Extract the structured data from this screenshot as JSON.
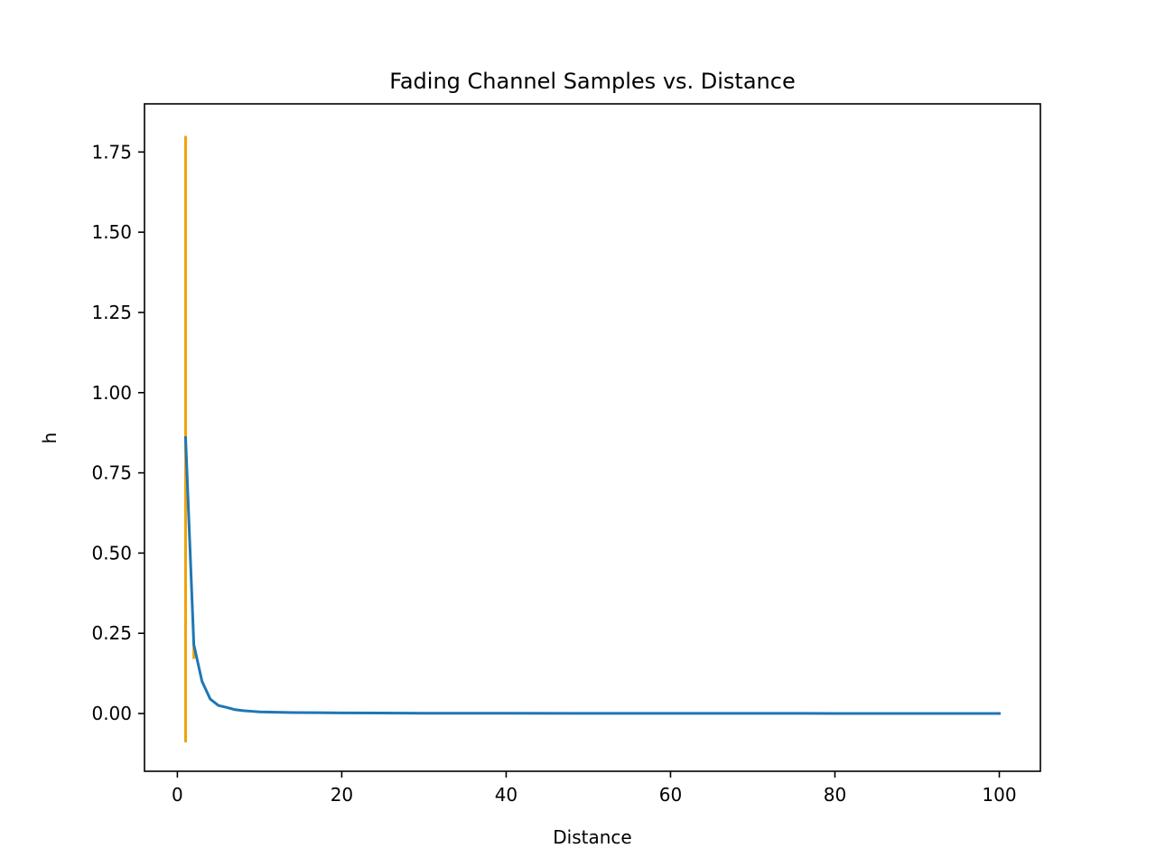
{
  "chart_data": {
    "type": "line",
    "title": "Fading Channel Samples vs. Distance",
    "xlabel": "Distance",
    "ylabel": "h",
    "xlim": [
      -4,
      105
    ],
    "ylim": [
      -0.18,
      1.9
    ],
    "x_ticks": [
      0,
      20,
      40,
      60,
      80,
      100
    ],
    "x_tick_labels": [
      "0",
      "20",
      "40",
      "60",
      "80",
      "100"
    ],
    "y_ticks": [
      0.0,
      0.25,
      0.5,
      0.75,
      1.0,
      1.25,
      1.5,
      1.75
    ],
    "y_tick_labels": [
      "0.00",
      "0.25",
      "0.50",
      "0.75",
      "1.00",
      "1.25",
      "1.50",
      "1.75"
    ],
    "grid": false,
    "legend": false,
    "series": [
      {
        "color": "#1f77b4",
        "x": [
          1,
          2,
          3,
          4,
          5,
          6,
          7,
          8,
          9,
          10,
          12,
          14,
          17,
          20,
          25,
          30,
          40,
          50,
          60,
          70,
          80,
          90,
          100
        ],
        "values": [
          0.86,
          0.215,
          0.1,
          0.045,
          0.025,
          0.019,
          0.012,
          0.009,
          0.007,
          0.005,
          0.004,
          0.003,
          0.0025,
          0.002,
          0.0015,
          0.001,
          0.0008,
          0.0006,
          0.0005,
          0.0004,
          0.0003,
          0.0003,
          0.0002
        ]
      }
    ],
    "vertical_segments": [
      {
        "color": "#f0a30a",
        "x": 1,
        "y_from": -0.09,
        "y_to": 1.8
      },
      {
        "color": "#f0a30a",
        "x": 2,
        "y_from": 0.17,
        "y_to": 0.22
      }
    ]
  }
}
